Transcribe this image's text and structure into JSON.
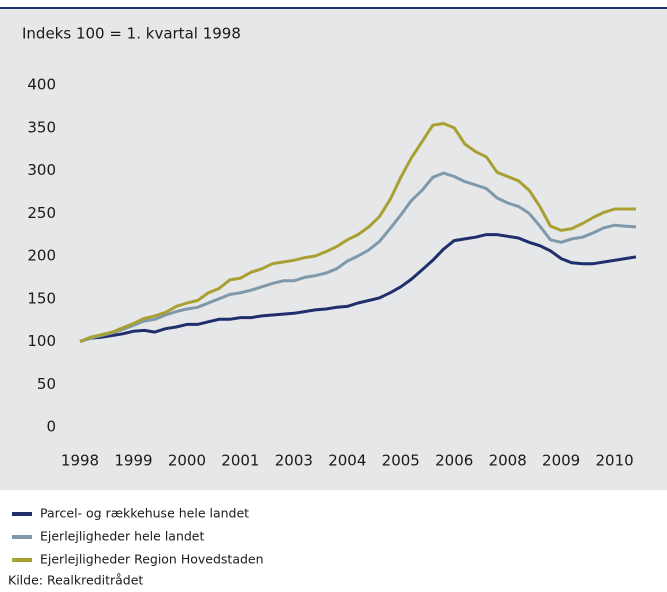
{
  "chart_data": {
    "type": "line",
    "subtitle": "Indeks 100 = 1. kvartal 1998",
    "categories": [
      "1998",
      null,
      null,
      null,
      null,
      "1999",
      null,
      null,
      null,
      null,
      "2000",
      null,
      null,
      null,
      null,
      "2001",
      null,
      null,
      null,
      null,
      "2003",
      null,
      null,
      null,
      null,
      "2004",
      null,
      null,
      null,
      null,
      "2005",
      null,
      null,
      null,
      null,
      "2006",
      null,
      null,
      null,
      null,
      "2008",
      null,
      null,
      null,
      null,
      "2009",
      null,
      null,
      null,
      null,
      "2010",
      null,
      null
    ],
    "series": [
      {
        "name": "Parcel- og rækkehuse hele landet",
        "color": "#1f2f6b",
        "values": [
          100,
          104,
          105,
          107,
          109,
          112,
          113,
          111,
          115,
          117,
          120,
          120,
          123,
          126,
          126,
          128,
          128,
          130,
          131,
          132,
          133,
          135,
          137,
          138,
          140,
          141,
          145,
          148,
          151,
          157,
          164,
          173,
          184,
          195,
          208,
          218,
          220,
          222,
          225,
          225,
          223,
          221,
          216,
          212,
          206,
          197,
          192,
          191,
          191,
          193,
          195,
          197,
          199
        ]
      },
      {
        "name": "Ejerlejligheder hele landet",
        "color": "#7f99ab",
        "values": [
          100,
          104,
          107,
          110,
          114,
          119,
          124,
          126,
          131,
          135,
          138,
          140,
          145,
          150,
          155,
          157,
          160,
          164,
          168,
          171,
          171,
          175,
          177,
          180,
          185,
          194,
          200,
          207,
          217,
          232,
          248,
          265,
          277,
          292,
          297,
          293,
          287,
          283,
          279,
          268,
          262,
          258,
          250,
          235,
          219,
          216,
          220,
          222,
          227,
          233,
          236,
          235,
          234
        ]
      },
      {
        "name": "Ejerlejligheder Region Hovedstaden",
        "color": "#a9a032",
        "values": [
          100,
          105,
          108,
          111,
          116,
          121,
          127,
          130,
          134,
          141,
          145,
          148,
          157,
          162,
          172,
          174,
          181,
          185,
          191,
          193,
          195,
          198,
          200,
          205,
          211,
          219,
          225,
          234,
          246,
          266,
          292,
          315,
          334,
          353,
          355,
          350,
          331,
          322,
          316,
          298,
          293,
          288,
          277,
          258,
          235,
          230,
          232,
          238,
          245,
          251,
          255,
          255,
          255
        ]
      }
    ],
    "ylim": [
      0,
      400
    ],
    "yticks": [
      0,
      50,
      100,
      150,
      200,
      250,
      300,
      350,
      400
    ],
    "grid": false,
    "legend": "bottom-left",
    "source": "Kilde: Realkreditrådet"
  }
}
